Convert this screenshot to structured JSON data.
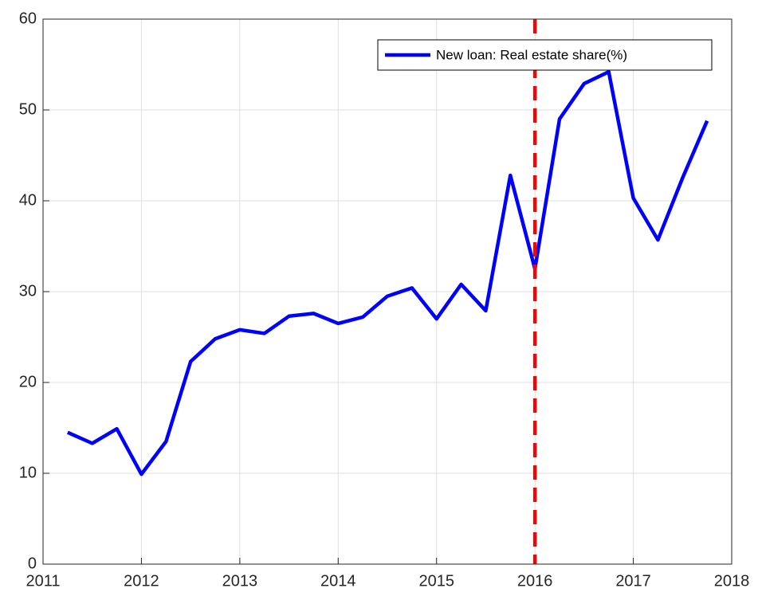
{
  "chart_data": {
    "type": "line",
    "x": [
      2011.25,
      2011.5,
      2011.75,
      2012,
      2012.25,
      2012.5,
      2012.75,
      2013,
      2013.25,
      2013.5,
      2013.75,
      2014,
      2014.25,
      2014.5,
      2014.75,
      2015,
      2015.25,
      2015.5,
      2015.75,
      2016,
      2016.25,
      2016.5,
      2016.75,
      2017,
      2017.25,
      2017.5,
      2017.75
    ],
    "series": [
      {
        "name": "New loan: Real estate share(%)",
        "color": "#0000ff",
        "values": [
          14.5,
          13.3,
          14.9,
          9.9,
          13.5,
          22.3,
          24.8,
          25.8,
          25.4,
          27.3,
          27.6,
          26.5,
          27.2,
          29.5,
          30.4,
          27.0,
          30.8,
          27.9,
          42.8,
          32.5,
          49.0,
          52.9,
          54.2,
          40.3,
          35.7,
          42.5,
          48.8
        ]
      }
    ],
    "xlim": [
      2011,
      2018
    ],
    "xticks": [
      2011,
      2012,
      2013,
      2014,
      2015,
      2016,
      2017,
      2018
    ],
    "ylim": [
      0,
      60
    ],
    "yticks": [
      0,
      10,
      20,
      30,
      40,
      50,
      60
    ],
    "grid": true,
    "legend": "upper right",
    "vline": {
      "x": 2016,
      "color": "#ff0000"
    }
  }
}
